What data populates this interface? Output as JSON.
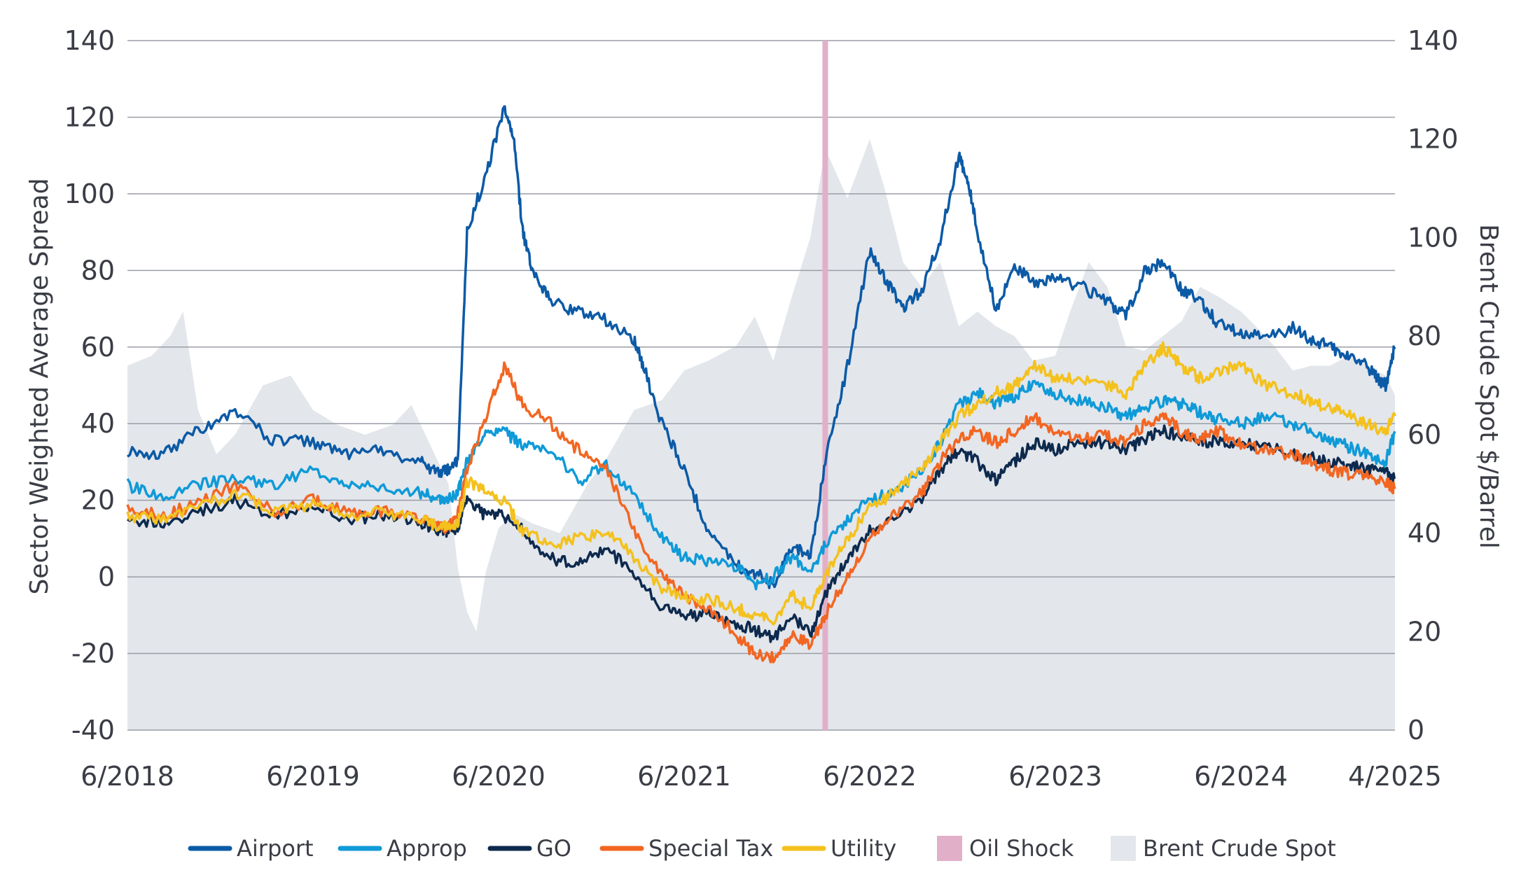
{
  "chart_data": {
    "type": "line",
    "title": "",
    "ylabel": "Sector Weighted Average Spread",
    "y2label": "Brent Crude Spot $/Barrel",
    "ylim": [
      -40,
      140
    ],
    "y2lim": [
      0,
      140
    ],
    "y_ticks": [
      "140",
      "120",
      "100",
      "80",
      "60",
      "40",
      "20",
      "0",
      "-20",
      "-40"
    ],
    "y2_ticks": [
      "140",
      "120",
      "100",
      "80",
      "60",
      "40",
      "20",
      "0"
    ],
    "x_ticks": [
      "6/2018",
      "6/2019",
      "6/2020",
      "6/2021",
      "6/2022",
      "6/2023",
      "6/2024",
      "4/2025"
    ],
    "x_tick_dates": [
      2018.42,
      2019.42,
      2020.42,
      2021.42,
      2022.42,
      2023.42,
      2024.42,
      2025.25
    ],
    "xlim": [
      2018.42,
      2025.25
    ],
    "grid": "horizontal",
    "legend_position": "bottom",
    "oil_shock": {
      "name": "Oil Shock",
      "date": 2022.18,
      "color": "#e2afc9"
    },
    "brent": {
      "name": "Brent Crude Spot",
      "color": "#e3e6eb",
      "x": [
        2018.42,
        2018.55,
        2018.65,
        2018.72,
        2018.8,
        2018.9,
        2019.0,
        2019.15,
        2019.3,
        2019.42,
        2019.55,
        2019.7,
        2019.85,
        2019.95,
        2020.05,
        2020.15,
        2020.2,
        2020.25,
        2020.3,
        2020.35,
        2020.42,
        2020.5,
        2020.6,
        2020.75,
        2020.9,
        2021.0,
        2021.15,
        2021.3,
        2021.42,
        2021.55,
        2021.7,
        2021.8,
        2021.9,
        2022.0,
        2022.1,
        2022.18,
        2022.3,
        2022.42,
        2022.5,
        2022.6,
        2022.7,
        2022.8,
        2022.9,
        2023.0,
        2023.1,
        2023.2,
        2023.3,
        2023.42,
        2023.5,
        2023.6,
        2023.7,
        2023.8,
        2023.9,
        2024.0,
        2024.1,
        2024.2,
        2024.3,
        2024.42,
        2024.5,
        2024.6,
        2024.7,
        2024.8,
        2024.9,
        2025.0,
        2025.1,
        2025.2,
        2025.25
      ],
      "values": [
        74,
        76,
        80,
        85,
        65,
        56,
        60,
        70,
        72,
        65,
        62,
        60,
        62,
        66,
        58,
        50,
        33,
        24,
        20,
        32,
        41,
        44,
        42,
        40,
        50,
        55,
        65,
        67,
        73,
        75,
        78,
        84,
        75,
        88,
        100,
        118,
        108,
        120,
        110,
        95,
        90,
        95,
        82,
        85,
        82,
        80,
        75,
        76,
        85,
        95,
        90,
        78,
        77,
        80,
        83,
        90,
        88,
        85,
        82,
        78,
        73,
        74,
        74,
        76,
        74,
        72,
        68
      ]
    },
    "series": [
      {
        "name": "Airport",
        "color": "#0b5aa6",
        "x": [
          2018.42,
          2018.6,
          2018.8,
          2019.0,
          2019.2,
          2019.42,
          2019.6,
          2019.8,
          2020.0,
          2020.1,
          2020.15,
          2020.2,
          2020.25,
          2020.35,
          2020.45,
          2020.5,
          2020.55,
          2020.6,
          2020.7,
          2020.85,
          2021.0,
          2021.15,
          2021.2,
          2021.3,
          2021.42,
          2021.55,
          2021.7,
          2021.8,
          2021.9,
          2022.0,
          2022.1,
          2022.18,
          2022.3,
          2022.42,
          2022.5,
          2022.6,
          2022.7,
          2022.8,
          2022.9,
          2022.95,
          2023.0,
          2023.1,
          2023.2,
          2023.3,
          2023.42,
          2023.55,
          2023.7,
          2023.8,
          2023.9,
          2024.0,
          2024.1,
          2024.2,
          2024.3,
          2024.42,
          2024.55,
          2024.7,
          2024.8,
          2024.9,
          2025.0,
          2025.1,
          2025.15,
          2025.2,
          2025.25
        ],
        "values": [
          33,
          32,
          38,
          43,
          36,
          35,
          32,
          33,
          30,
          27,
          28,
          30,
          90,
          105,
          122,
          115,
          90,
          80,
          72,
          69,
          67,
          62,
          55,
          40,
          28,
          12,
          3,
          1,
          -2,
          8,
          5,
          30,
          55,
          85,
          78,
          70,
          75,
          88,
          110,
          103,
          90,
          70,
          81,
          77,
          78,
          76,
          72,
          68,
          80,
          82,
          75,
          72,
          66,
          64,
          62,
          65,
          62,
          60,
          58,
          55,
          52,
          50,
          60
        ]
      },
      {
        "name": "Approp",
        "color": "#0f9ad8",
        "x": [
          2018.42,
          2018.6,
          2018.8,
          2019.0,
          2019.2,
          2019.42,
          2019.6,
          2019.8,
          2020.0,
          2020.1,
          2020.15,
          2020.2,
          2020.25,
          2020.35,
          2020.45,
          2020.55,
          2020.7,
          2020.85,
          2021.0,
          2021.15,
          2021.3,
          2021.42,
          2021.55,
          2021.7,
          2021.8,
          2021.9,
          2022.0,
          2022.1,
          2022.18,
          2022.3,
          2022.42,
          2022.55,
          2022.7,
          2022.8,
          2022.9,
          2023.0,
          2023.1,
          2023.2,
          2023.3,
          2023.42,
          2023.55,
          2023.7,
          2023.8,
          2023.9,
          2024.0,
          2024.1,
          2024.2,
          2024.3,
          2024.42,
          2024.55,
          2024.7,
          2024.8,
          2024.9,
          2025.0,
          2025.1,
          2025.2,
          2025.25
        ],
        "values": [
          24,
          21,
          24,
          26,
          24,
          28,
          24,
          23,
          22,
          20,
          20,
          22,
          30,
          37,
          38,
          34,
          33,
          25,
          29,
          22,
          10,
          5,
          4,
          3,
          -2,
          0,
          5,
          2,
          8,
          15,
          20,
          22,
          28,
          35,
          45,
          48,
          45,
          47,
          50,
          48,
          46,
          44,
          42,
          44,
          46,
          45,
          43,
          41,
          40,
          42,
          40,
          38,
          36,
          34,
          32,
          30,
          38
        ]
      },
      {
        "name": "GO",
        "color": "#0d2a4e",
        "x": [
          2018.42,
          2018.6,
          2018.8,
          2019.0,
          2019.2,
          2019.42,
          2019.6,
          2019.8,
          2020.0,
          2020.1,
          2020.15,
          2020.2,
          2020.25,
          2020.35,
          2020.45,
          2020.55,
          2020.7,
          2020.85,
          2021.0,
          2021.15,
          2021.3,
          2021.42,
          2021.55,
          2021.7,
          2021.8,
          2021.9,
          2022.0,
          2022.1,
          2022.18,
          2022.3,
          2022.42,
          2022.55,
          2022.7,
          2022.8,
          2022.9,
          2023.0,
          2023.1,
          2023.2,
          2023.3,
          2023.42,
          2023.55,
          2023.7,
          2023.8,
          2023.9,
          2024.0,
          2024.1,
          2024.2,
          2024.3,
          2024.42,
          2024.55,
          2024.7,
          2024.8,
          2024.9,
          2025.0,
          2025.1,
          2025.2,
          2025.25
        ],
        "values": [
          15,
          14,
          17,
          20,
          16,
          18,
          15,
          16,
          14,
          12,
          12,
          13,
          20,
          16,
          16,
          12,
          5,
          3,
          8,
          0,
          -8,
          -10,
          -10,
          -12,
          -14,
          -16,
          -10,
          -15,
          -5,
          5,
          12,
          16,
          20,
          28,
          33,
          30,
          25,
          30,
          35,
          33,
          35,
          35,
          33,
          36,
          38,
          37,
          35,
          36,
          34,
          35,
          32,
          31,
          30,
          29,
          28,
          27,
          26
        ]
      },
      {
        "name": "Special Tax",
        "color": "#f26622",
        "x": [
          2018.42,
          2018.6,
          2018.8,
          2019.0,
          2019.2,
          2019.42,
          2019.6,
          2019.8,
          2020.0,
          2020.1,
          2020.15,
          2020.2,
          2020.25,
          2020.35,
          2020.45,
          2020.55,
          2020.7,
          2020.85,
          2021.0,
          2021.15,
          2021.3,
          2021.42,
          2021.55,
          2021.7,
          2021.8,
          2021.9,
          2022.0,
          2022.1,
          2022.18,
          2022.3,
          2022.42,
          2022.55,
          2022.7,
          2022.8,
          2022.9,
          2023.0,
          2023.1,
          2023.2,
          2023.3,
          2023.42,
          2023.55,
          2023.7,
          2023.8,
          2023.9,
          2024.0,
          2024.1,
          2024.2,
          2024.3,
          2024.42,
          2024.55,
          2024.7,
          2024.8,
          2024.9,
          2025.0,
          2025.1,
          2025.2,
          2025.25
        ],
        "values": [
          18,
          16,
          19,
          24,
          17,
          20,
          17,
          17,
          15,
          13,
          13,
          16,
          28,
          42,
          55,
          45,
          40,
          33,
          28,
          12,
          0,
          -5,
          -8,
          -15,
          -20,
          -21,
          -15,
          -18,
          -10,
          0,
          10,
          16,
          22,
          30,
          36,
          38,
          35,
          38,
          42,
          38,
          36,
          37,
          35,
          40,
          42,
          38,
          36,
          38,
          35,
          33,
          32,
          30,
          28,
          27,
          26,
          25,
          23
        ]
      },
      {
        "name": "Utility",
        "color": "#f4c11d",
        "x": [
          2018.42,
          2018.6,
          2018.8,
          2019.0,
          2019.2,
          2019.42,
          2019.6,
          2019.8,
          2020.0,
          2020.1,
          2020.15,
          2020.2,
          2020.25,
          2020.35,
          2020.45,
          2020.55,
          2020.7,
          2020.85,
          2021.0,
          2021.15,
          2021.3,
          2021.42,
          2021.55,
          2021.7,
          2021.8,
          2021.9,
          2022.0,
          2022.1,
          2022.18,
          2022.3,
          2022.42,
          2022.55,
          2022.7,
          2022.8,
          2022.9,
          2023.0,
          2023.1,
          2023.2,
          2023.3,
          2023.42,
          2023.55,
          2023.7,
          2023.8,
          2023.9,
          2024.0,
          2024.1,
          2024.2,
          2024.3,
          2024.42,
          2024.55,
          2024.7,
          2024.8,
          2024.9,
          2025.0,
          2025.1,
          2025.2,
          2025.25
        ],
        "values": [
          16,
          15,
          18,
          22,
          17,
          19,
          16,
          17,
          15,
          13,
          13,
          14,
          25,
          22,
          20,
          12,
          8,
          10,
          12,
          5,
          -3,
          -5,
          -6,
          -8,
          -10,
          -11,
          -5,
          -8,
          0,
          10,
          18,
          22,
          28,
          35,
          42,
          45,
          48,
          50,
          55,
          52,
          52,
          50,
          48,
          55,
          60,
          55,
          52,
          54,
          55,
          50,
          48,
          46,
          44,
          42,
          40,
          38,
          42
        ]
      }
    ]
  },
  "legend": [
    {
      "label": "Airport",
      "kind": "line",
      "color": "#0b5aa6"
    },
    {
      "label": "Approp",
      "kind": "line",
      "color": "#0f9ad8"
    },
    {
      "label": "GO",
      "kind": "line",
      "color": "#0d2a4e"
    },
    {
      "label": "Special Tax",
      "kind": "line",
      "color": "#f26622"
    },
    {
      "label": "Utility",
      "kind": "line",
      "color": "#f4c11d"
    },
    {
      "label": "Oil Shock",
      "kind": "box",
      "color": "#e2afc9"
    },
    {
      "label": "Brent Crude Spot",
      "kind": "box",
      "color": "#e3e6eb"
    }
  ]
}
